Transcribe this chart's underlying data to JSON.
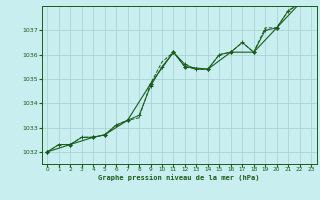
{
  "title": "Graphe pression niveau de la mer (hPa)",
  "bg_color": "#c8eef0",
  "grid_color": "#aad4d8",
  "line_color": "#1a5c1a",
  "xlim": [
    -0.5,
    23.5
  ],
  "ylim": [
    1031.5,
    1038.0
  ],
  "yticks": [
    1032,
    1033,
    1034,
    1035,
    1036,
    1037
  ],
  "xticks": [
    0,
    1,
    2,
    3,
    4,
    5,
    6,
    7,
    8,
    9,
    10,
    11,
    12,
    13,
    14,
    15,
    16,
    17,
    18,
    19,
    20,
    21,
    22,
    23
  ],
  "series1_x": [
    0,
    1,
    2,
    3,
    4,
    5,
    6,
    7,
    8,
    9,
    10,
    11,
    12,
    13,
    14,
    15,
    16,
    17,
    18,
    19,
    20,
    21,
    22,
    23
  ],
  "series1_y": [
    1032.0,
    1032.3,
    1032.3,
    1032.6,
    1032.6,
    1032.7,
    1033.1,
    1033.3,
    1033.4,
    1034.8,
    1035.7,
    1036.1,
    1035.5,
    1035.4,
    1035.4,
    1036.0,
    1036.1,
    1036.5,
    1036.1,
    1037.1,
    1037.1,
    1037.8,
    1038.1,
    1038.1
  ],
  "series2_x": [
    0,
    1,
    2,
    3,
    4,
    5,
    6,
    7,
    8,
    9,
    10,
    11,
    12,
    13,
    14,
    15,
    16,
    17,
    18,
    19,
    20,
    21,
    22,
    23
  ],
  "series2_y": [
    1032.0,
    1032.3,
    1032.3,
    1032.6,
    1032.6,
    1032.7,
    1033.1,
    1033.3,
    1033.5,
    1034.7,
    1035.5,
    1036.1,
    1035.6,
    1035.4,
    1035.4,
    1036.0,
    1036.1,
    1036.5,
    1036.1,
    1037.0,
    1037.1,
    1037.8,
    1038.1,
    1038.1
  ],
  "series3_x": [
    0,
    2,
    4,
    5,
    7,
    9,
    11,
    12,
    14,
    16,
    18,
    20,
    22,
    23
  ],
  "series3_y": [
    1032.0,
    1032.3,
    1032.6,
    1032.7,
    1033.3,
    1034.8,
    1036.1,
    1035.5,
    1035.4,
    1036.1,
    1036.1,
    1037.1,
    1038.1,
    1038.1
  ]
}
